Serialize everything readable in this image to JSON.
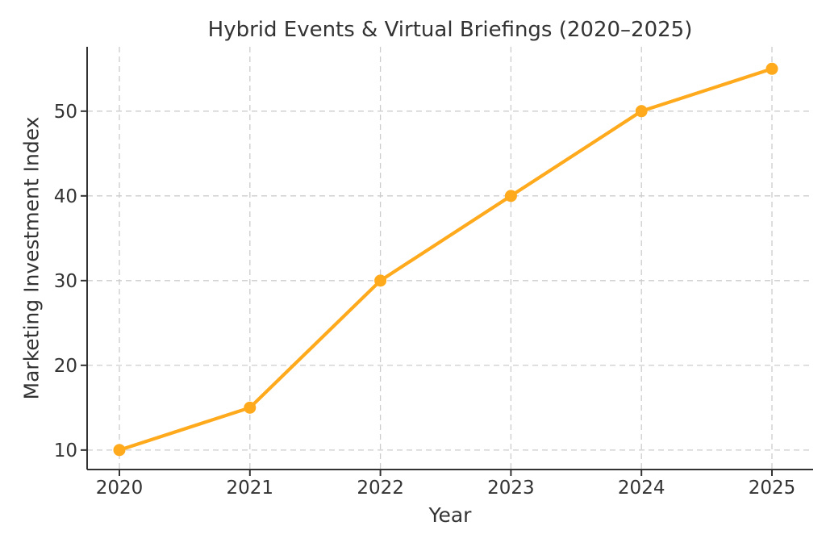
{
  "figure": {
    "background": "#ffffff"
  },
  "chart_data": {
    "type": "line",
    "title": "Hybrid Events & Virtual Briefings (2020–2025)",
    "xlabel": "Year",
    "ylabel": "Marketing Investment Index",
    "categories": [
      "2020",
      "2021",
      "2022",
      "2023",
      "2024",
      "2025"
    ],
    "series": [
      {
        "name": "Marketing Investment Index",
        "values": [
          10,
          15,
          30,
          40,
          50,
          55
        ],
        "color": "#FFAA1C",
        "marker": "circle",
        "line_style": "solid"
      }
    ],
    "yticks": [
      10,
      20,
      30,
      40,
      50
    ],
    "ylim": [
      7.7,
      57.6
    ],
    "grid": true,
    "grid_style": "dashed",
    "grid_color": "#cccccc",
    "axis_color": "#333333",
    "text_color": "#333333",
    "tick_label_color": "#333333",
    "legend_position": "none"
  }
}
